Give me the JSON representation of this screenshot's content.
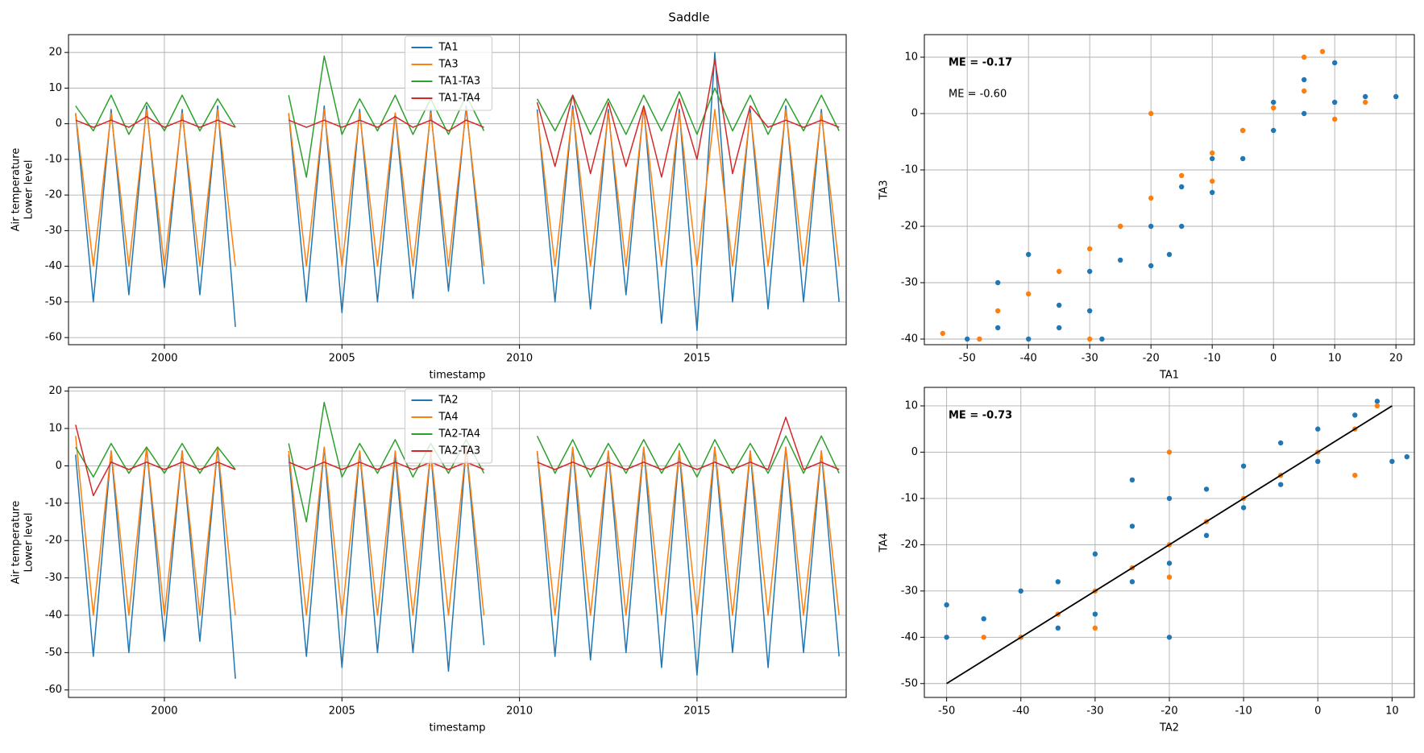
{
  "title": "Saddle",
  "chart_data": [
    {
      "type": "line",
      "xlabel": "timestamp",
      "ylabel": [
        "Air temperature",
        "Lower level"
      ],
      "xlim": [
        1997.3,
        2019.2
      ],
      "xticks": [
        2000,
        2005,
        2010,
        2015
      ],
      "ylim": [
        -62,
        25
      ],
      "yticks": [
        -60,
        -50,
        -40,
        -30,
        -20,
        -10,
        0,
        10,
        20
      ],
      "grid": true,
      "legend": "upper center",
      "x": [
        1997.5,
        1998,
        1998.5,
        1999,
        1999.5,
        2000,
        2000.5,
        2001,
        2001.5,
        2002,
        2002.5,
        2003,
        2003.5,
        2004,
        2004.5,
        2005,
        2005.5,
        2006,
        2006.5,
        2007,
        2007.5,
        2008,
        2008.5,
        2009,
        2009.5,
        2010,
        2010.5,
        2011,
        2011.5,
        2012,
        2012.5,
        2013,
        2013.5,
        2014,
        2014.5,
        2015,
        2015.5,
        2016,
        2016.5,
        2017,
        2017.5,
        2018,
        2018.5,
        2019
      ],
      "series": [
        {
          "name": "TA1",
          "color": "#1f77b4",
          "values": [
            3,
            -50,
            4,
            -48,
            5,
            -46,
            4,
            -48,
            5,
            -57,
            null,
            null,
            3,
            -50,
            5,
            -53,
            4,
            -50,
            3,
            -49,
            4,
            -47,
            5,
            -45,
            null,
            null,
            4,
            -50,
            5,
            -52,
            4,
            -48,
            5,
            -56,
            4,
            -58,
            20,
            -50,
            4,
            -52,
            5,
            -50,
            4,
            -50
          ]
        },
        {
          "name": "TA3",
          "color": "#ff7f0e",
          "values": [
            3,
            -40,
            3,
            -40,
            4,
            -40,
            3,
            -40,
            4,
            -40,
            null,
            null,
            3,
            -40,
            4,
            -40,
            3,
            -40,
            3,
            -40,
            3,
            -40,
            4,
            -40,
            null,
            null,
            3,
            -40,
            4,
            -40,
            3,
            -40,
            4,
            -40,
            3,
            -40,
            4,
            -40,
            3,
            -40,
            4,
            -40,
            3,
            -40
          ]
        },
        {
          "name": "TA1-TA3",
          "color": "#2ca02c",
          "values": [
            5,
            -2,
            8,
            -3,
            6,
            -2,
            8,
            -2,
            7,
            -1,
            null,
            null,
            8,
            -15,
            19,
            -3,
            7,
            -2,
            8,
            -3,
            7,
            -3,
            8,
            -2,
            null,
            null,
            7,
            -2,
            8,
            -3,
            7,
            -3,
            8,
            -2,
            9,
            -3,
            10,
            -2,
            8,
            -3,
            7,
            -2,
            8,
            -2
          ]
        },
        {
          "name": "TA1-TA4",
          "color": "#d62728",
          "values": [
            1,
            -1,
            1,
            -1,
            2,
            -1,
            1,
            -1,
            1,
            -1,
            null,
            null,
            1,
            -1,
            1,
            -1,
            1,
            -1,
            2,
            -1,
            1,
            -2,
            1,
            -1,
            null,
            null,
            6,
            -12,
            8,
            -14,
            6,
            -12,
            5,
            -15,
            7,
            -10,
            18,
            -14,
            5,
            -1,
            1,
            -1,
            1,
            -1
          ]
        }
      ]
    },
    {
      "type": "scatter",
      "xlabel": "TA1",
      "ylabel": "TA3",
      "xlim": [
        -57,
        23
      ],
      "xticks": [
        -50,
        -40,
        -30,
        -20,
        -10,
        0,
        10,
        20
      ],
      "ylim": [
        -41,
        14
      ],
      "yticks": [
        -40,
        -30,
        -20,
        -10,
        0,
        10
      ],
      "grid": true,
      "annotations": [
        {
          "text": "ME = -0.17",
          "bold": true
        },
        {
          "text": "ME = -0.60",
          "bold": false
        }
      ],
      "series": [
        {
          "color": "#1f77b4",
          "x": [
            -50,
            -45,
            -45,
            -40,
            -40,
            -35,
            -35,
            -30,
            -30,
            -28,
            -25,
            -25,
            -20,
            -20,
            -17,
            -15,
            -15,
            -10,
            -10,
            -5,
            -5,
            0,
            0,
            5,
            5,
            10,
            10,
            15,
            20
          ],
          "y": [
            -40,
            -38,
            -30,
            -40,
            -25,
            -34,
            -38,
            -28,
            -35,
            -40,
            -20,
            -26,
            -20,
            -27,
            -25,
            -13,
            -20,
            -8,
            -14,
            -3,
            -8,
            2,
            -3,
            6,
            0,
            9,
            2,
            3,
            3
          ]
        },
        {
          "color": "#ff7f0e",
          "x": [
            -54,
            -48,
            -45,
            -40,
            -35,
            -30,
            -25,
            -20,
            -20,
            -15,
            -10,
            -5,
            0,
            5,
            8,
            5,
            10,
            15,
            -30,
            -10
          ],
          "y": [
            -39,
            -40,
            -35,
            -32,
            -28,
            -24,
            -20,
            -15,
            0,
            -11,
            -7,
            -3,
            1,
            4,
            11,
            10,
            -1,
            2,
            -40,
            -12
          ]
        }
      ]
    },
    {
      "type": "line",
      "xlabel": "timestamp",
      "ylabel": [
        "Air temperature",
        "Lower level"
      ],
      "xlim": [
        1997.3,
        2019.2
      ],
      "xticks": [
        2000,
        2005,
        2010,
        2015
      ],
      "ylim": [
        -62,
        21
      ],
      "yticks": [
        -60,
        -50,
        -40,
        -30,
        -20,
        -10,
        0,
        10,
        20
      ],
      "grid": true,
      "legend": "upper center",
      "x": [
        1997.5,
        1998,
        1998.5,
        1999,
        1999.5,
        2000,
        2000.5,
        2001,
        2001.5,
        2002,
        2002.5,
        2003,
        2003.5,
        2004,
        2004.5,
        2005,
        2005.5,
        2006,
        2006.5,
        2007,
        2007.5,
        2008,
        2008.5,
        2009,
        2009.5,
        2010,
        2010.5,
        2011,
        2011.5,
        2012,
        2012.5,
        2013,
        2013.5,
        2014,
        2014.5,
        2015,
        2015.5,
        2016,
        2016.5,
        2017,
        2017.5,
        2018,
        2018.5,
        2019
      ],
      "series": [
        {
          "name": "TA2",
          "color": "#1f77b4",
          "values": [
            3,
            -51,
            4,
            -50,
            5,
            -47,
            4,
            -47,
            5,
            -57,
            null,
            null,
            3,
            -51,
            5,
            -54,
            4,
            -50,
            3,
            -50,
            4,
            -55,
            5,
            -48,
            null,
            null,
            4,
            -51,
            5,
            -52,
            4,
            -50,
            5,
            -54,
            4,
            -56,
            5,
            -50,
            4,
            -54,
            5,
            -50,
            4,
            -51
          ]
        },
        {
          "name": "TA4",
          "color": "#ff7f0e",
          "values": [
            8,
            -40,
            4,
            -40,
            5,
            -40,
            4,
            -40,
            5,
            -40,
            null,
            null,
            4,
            -40,
            5,
            -40,
            4,
            -40,
            4,
            -40,
            4,
            -40,
            5,
            -40,
            null,
            null,
            4,
            -40,
            5,
            -40,
            4,
            -40,
            5,
            -40,
            4,
            -40,
            5,
            -40,
            4,
            -40,
            5,
            -40,
            4,
            -40
          ]
        },
        {
          "name": "TA2-TA4",
          "color": "#2ca02c",
          "values": [
            5,
            -3,
            6,
            -2,
            5,
            -2,
            6,
            -2,
            5,
            -1,
            null,
            null,
            6,
            -15,
            17,
            -3,
            6,
            -2,
            7,
            -3,
            6,
            -2,
            7,
            -2,
            null,
            null,
            8,
            -2,
            7,
            -3,
            6,
            -2,
            7,
            -2,
            6,
            -3,
            7,
            -2,
            6,
            -2,
            8,
            -2,
            8,
            -2
          ]
        },
        {
          "name": "TA2-TA3",
          "color": "#d62728",
          "values": [
            11,
            -8,
            1,
            -1,
            1,
            -1,
            1,
            -1,
            1,
            -1,
            null,
            null,
            1,
            -1,
            1,
            -1,
            1,
            -1,
            1,
            -1,
            1,
            -1,
            1,
            -1,
            null,
            null,
            1,
            -1,
            1,
            -1,
            1,
            -1,
            1,
            -1,
            1,
            -1,
            1,
            -1,
            1,
            -1,
            13,
            -1,
            1,
            -1
          ]
        }
      ]
    },
    {
      "type": "scatter",
      "xlabel": "TA2",
      "ylabel": "TA4",
      "xlim": [
        -53,
        13
      ],
      "xticks": [
        -50,
        -40,
        -30,
        -20,
        -10,
        0,
        10
      ],
      "ylim": [
        -53,
        14
      ],
      "yticks": [
        -50,
        -40,
        -30,
        -20,
        -10,
        0,
        10
      ],
      "grid": true,
      "annotations": [
        {
          "text": "ME = -0.73",
          "bold": true
        }
      ],
      "line": {
        "color": "#000000",
        "x": [
          -50,
          10
        ],
        "y": [
          -50,
          10
        ]
      },
      "series": [
        {
          "color": "#1f77b4",
          "x": [
            -50,
            -50,
            -45,
            -40,
            -40,
            -35,
            -35,
            -30,
            -30,
            -25,
            -25,
            -25,
            -20,
            -20,
            -20,
            -15,
            -15,
            -10,
            -10,
            -5,
            -5,
            0,
            0,
            5,
            8,
            10,
            12
          ],
          "y": [
            -33,
            -40,
            -36,
            -30,
            -40,
            -28,
            -38,
            -22,
            -35,
            -16,
            -28,
            -6,
            -10,
            -24,
            -40,
            -8,
            -18,
            -3,
            -12,
            2,
            -7,
            5,
            -2,
            8,
            11,
            -2,
            -1
          ]
        },
        {
          "color": "#ff7f0e",
          "x": [
            -45,
            -40,
            -35,
            -30,
            -25,
            -20,
            -20,
            -15,
            -10,
            -5,
            0,
            5,
            8,
            5,
            -30,
            -20
          ],
          "y": [
            -40,
            -40,
            -35,
            -30,
            -25,
            -20,
            0,
            -15,
            -10,
            -5,
            0,
            5,
            10,
            -5,
            -38,
            -27
          ]
        }
      ]
    }
  ]
}
